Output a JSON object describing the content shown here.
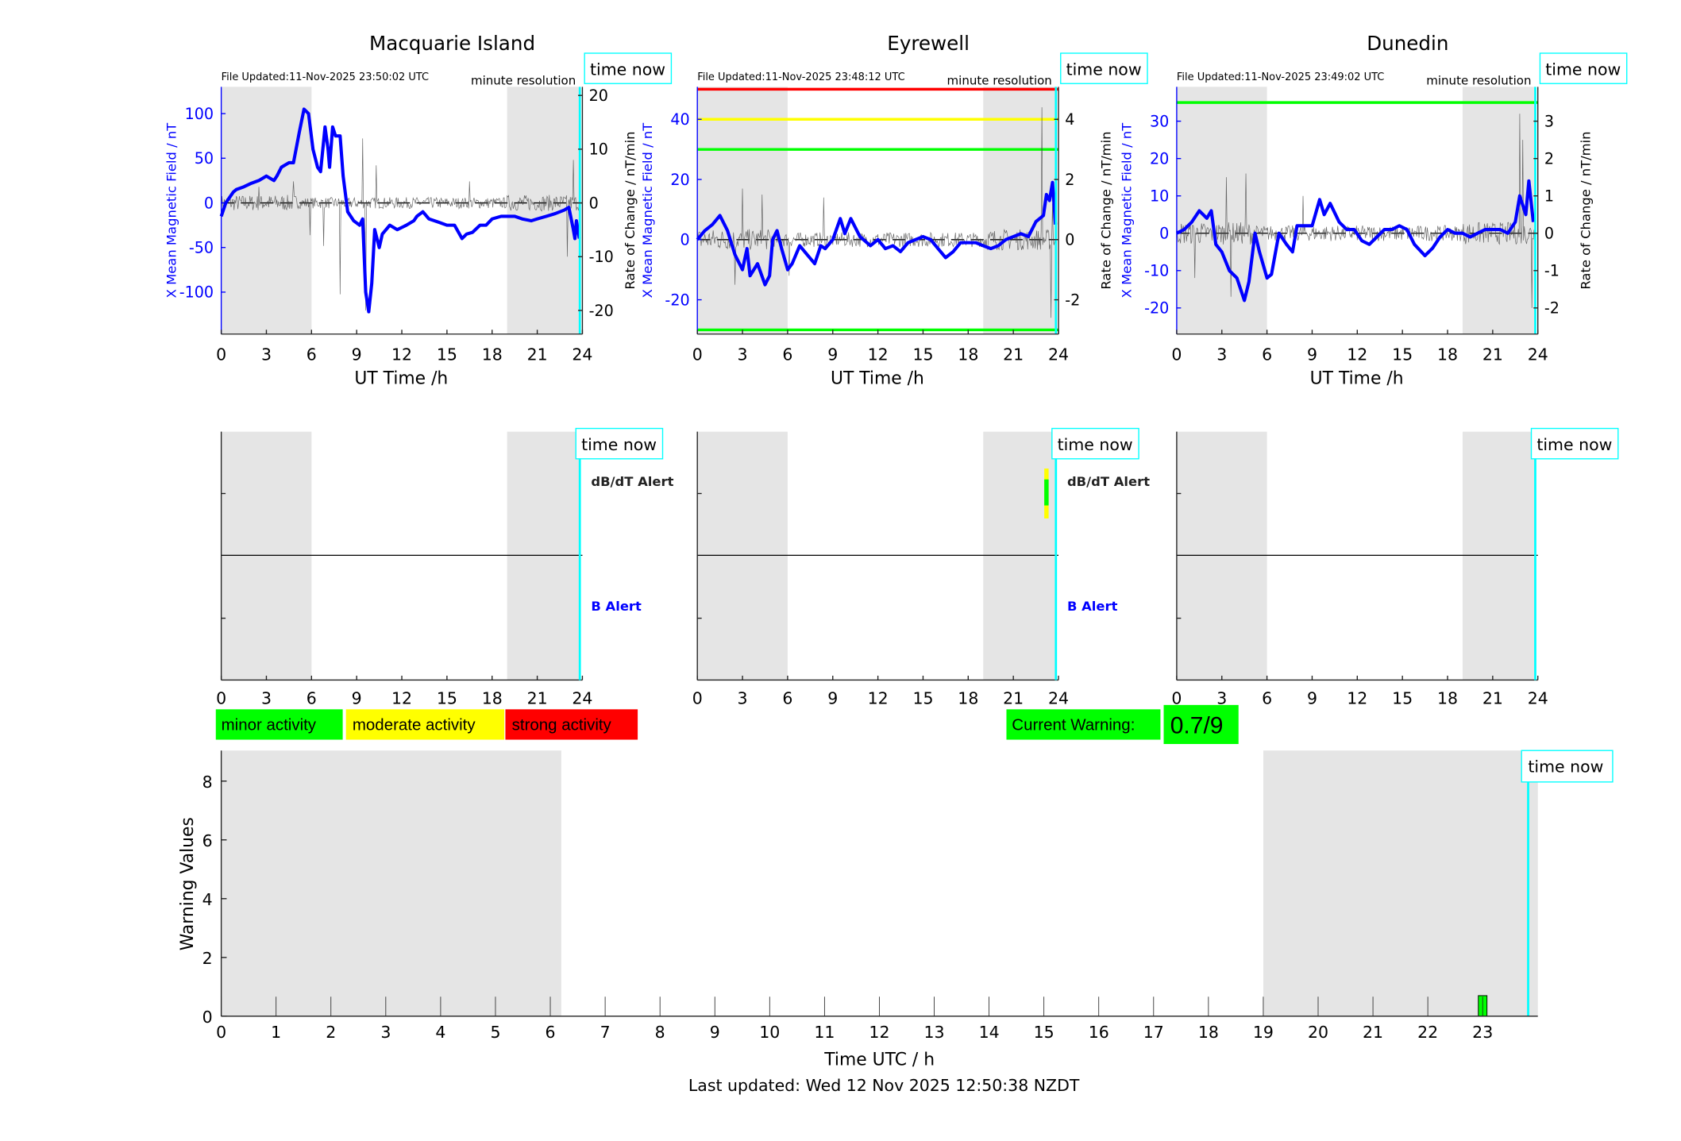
{
  "colors": {
    "blue": "#0000ff",
    "night": "#e5e5e5",
    "cyan": "#00ffff",
    "green": "#00ff00",
    "yellow": "#ffff00",
    "red": "#ff0000",
    "gray": "#555555"
  },
  "common": {
    "xlabel": "UT Time /h",
    "xticks": [
      0,
      3,
      6,
      9,
      12,
      15,
      18,
      21,
      24
    ],
    "left_label": "X Mean Magnetic Field / nT",
    "right_label": "Rate of Change / nT/min",
    "resolution": "minute resolution",
    "time_now": "time now",
    "time_now_hour": 23.83,
    "night": [
      [
        0,
        6
      ],
      [
        19,
        23.83
      ]
    ],
    "dbdt_alert": "dB/dT Alert",
    "b_alert": "B Alert"
  },
  "chart_data": [
    {
      "type": "line",
      "title": "Macquarie Island",
      "file_updated": "File Updated:11-Nov-2025 23:50:02 UTC",
      "ylim": [
        -147,
        130
      ],
      "yticks": [
        -100,
        -50,
        0,
        50,
        100
      ],
      "y2lim": [
        -24.4,
        21.6
      ],
      "y2ticks": [
        -20,
        -10,
        0,
        10,
        20
      ],
      "thresholds": [],
      "show_right_label": true,
      "x_field": [
        [
          0,
          -15
        ],
        [
          0.3,
          0
        ],
        [
          0.8,
          12
        ],
        [
          1,
          15
        ],
        [
          1.5,
          18
        ],
        [
          2,
          22
        ],
        [
          2.5,
          25
        ],
        [
          3,
          30
        ],
        [
          3.5,
          25
        ],
        [
          3.7,
          30
        ],
        [
          4,
          40
        ],
        [
          4.5,
          45
        ],
        [
          4.8,
          45
        ],
        [
          5.2,
          80
        ],
        [
          5.5,
          105
        ],
        [
          5.8,
          100
        ],
        [
          6.1,
          60
        ],
        [
          6.4,
          40
        ],
        [
          6.6,
          35
        ],
        [
          6.9,
          85
        ],
        [
          7.1,
          60
        ],
        [
          7.2,
          40
        ],
        [
          7.4,
          85
        ],
        [
          7.6,
          75
        ],
        [
          7.9,
          75
        ],
        [
          8.1,
          30
        ],
        [
          8.4,
          -10
        ],
        [
          8.8,
          -20
        ],
        [
          9.2,
          -25
        ],
        [
          9.4,
          -18
        ],
        [
          9.6,
          -100
        ],
        [
          9.8,
          -122
        ],
        [
          10,
          -90
        ],
        [
          10.2,
          -30
        ],
        [
          10.5,
          -50
        ],
        [
          10.7,
          -35
        ],
        [
          11.2,
          -25
        ],
        [
          11.7,
          -30
        ],
        [
          12.3,
          -25
        ],
        [
          12.8,
          -20
        ],
        [
          13,
          -15
        ],
        [
          13.4,
          -10
        ],
        [
          13.8,
          -18
        ],
        [
          14.5,
          -22
        ],
        [
          15,
          -25
        ],
        [
          15.5,
          -25
        ],
        [
          16,
          -40
        ],
        [
          16.3,
          -35
        ],
        [
          16.7,
          -33
        ],
        [
          17.2,
          -25
        ],
        [
          17.6,
          -25
        ],
        [
          18,
          -18
        ],
        [
          18.6,
          -15
        ],
        [
          19.5,
          -15
        ],
        [
          20,
          -18
        ],
        [
          20.6,
          -20
        ],
        [
          21,
          -18
        ],
        [
          21.6,
          -15
        ],
        [
          22.2,
          -12
        ],
        [
          22.8,
          -8
        ],
        [
          23.1,
          -5
        ],
        [
          23.4,
          -30
        ],
        [
          23.5,
          -40
        ],
        [
          23.6,
          -20
        ],
        [
          23.8,
          -40
        ]
      ],
      "rate_spikes": [
        [
          2.5,
          3
        ],
        [
          4.8,
          4
        ],
        [
          5.9,
          -6
        ],
        [
          6.8,
          -8
        ],
        [
          7.9,
          -17
        ],
        [
          9.4,
          12
        ],
        [
          9.6,
          -20
        ],
        [
          10.3,
          7
        ],
        [
          16.5,
          4
        ],
        [
          23.0,
          -10
        ],
        [
          23.4,
          8
        ]
      ],
      "rate_noise": 1.5,
      "alerts": []
    },
    {
      "type": "line",
      "title": "Eyrewell",
      "file_updated": "File Updated:11-Nov-2025 23:48:12 UTC",
      "ylim": [
        -31.4,
        50.8
      ],
      "yticks": [
        -20,
        0,
        20,
        40
      ],
      "y2lim": [
        -3.14,
        5.08
      ],
      "y2ticks": [
        -2,
        0,
        2,
        4
      ],
      "thresholds": [
        {
          "value": 50,
          "color": "#ff0000"
        },
        {
          "value": 40,
          "color": "#ffff00"
        },
        {
          "value": 30,
          "color": "#00ff00"
        },
        {
          "value": -30,
          "color": "#00ff00"
        }
      ],
      "show_right_label": true,
      "x_field": [
        [
          0,
          0
        ],
        [
          0.5,
          3
        ],
        [
          1,
          5
        ],
        [
          1.5,
          8
        ],
        [
          2,
          3
        ],
        [
          2.5,
          -5
        ],
        [
          3,
          -10
        ],
        [
          3.3,
          -3
        ],
        [
          3.5,
          -12
        ],
        [
          4,
          -8
        ],
        [
          4.5,
          -15
        ],
        [
          4.8,
          -12
        ],
        [
          5,
          0
        ],
        [
          5.3,
          3
        ],
        [
          5.6,
          -3
        ],
        [
          6,
          -10
        ],
        [
          6.3,
          -8
        ],
        [
          6.8,
          -2
        ],
        [
          7.3,
          -5
        ],
        [
          7.8,
          -8
        ],
        [
          8.2,
          -2
        ],
        [
          8.5,
          -3
        ],
        [
          9,
          0
        ],
        [
          9.5,
          7
        ],
        [
          9.8,
          2
        ],
        [
          10.2,
          7
        ],
        [
          10.8,
          1
        ],
        [
          11.5,
          -2
        ],
        [
          12,
          0
        ],
        [
          12.5,
          -3
        ],
        [
          13,
          -2
        ],
        [
          13.5,
          -4
        ],
        [
          14,
          -1
        ],
        [
          14.5,
          0
        ],
        [
          15,
          1
        ],
        [
          15.5,
          0
        ],
        [
          16,
          -3
        ],
        [
          16.5,
          -6
        ],
        [
          17,
          -4
        ],
        [
          17.5,
          -1
        ],
        [
          18,
          -1
        ],
        [
          18.5,
          -1
        ],
        [
          19,
          -2
        ],
        [
          19.5,
          -3
        ],
        [
          20,
          -2
        ],
        [
          20.5,
          0
        ],
        [
          21,
          1
        ],
        [
          21.5,
          2
        ],
        [
          22,
          1
        ],
        [
          22.5,
          6
        ],
        [
          23,
          8
        ],
        [
          23.2,
          15
        ],
        [
          23.4,
          13
        ],
        [
          23.6,
          19
        ],
        [
          23.8,
          5
        ]
      ],
      "rate_spikes": [
        [
          2.5,
          -1.5
        ],
        [
          3,
          1.7
        ],
        [
          4.3,
          1.5
        ],
        [
          6.1,
          -1.2
        ],
        [
          8.4,
          1.4
        ],
        [
          22.9,
          4.4
        ],
        [
          23.5,
          -2.6
        ],
        [
          23.6,
          1.2
        ]
      ],
      "rate_noise": 0.35,
      "alerts": [
        {
          "hour": 23.2,
          "level": "dbdt"
        }
      ]
    },
    {
      "type": "line",
      "title": "Dunedin",
      "file_updated": "File Updated:11-Nov-2025 23:49:02 UTC",
      "ylim": [
        -27,
        39.2
      ],
      "yticks": [
        -20,
        -10,
        0,
        10,
        20,
        30
      ],
      "y2lim": [
        -2.7,
        3.92
      ],
      "y2ticks": [
        -2,
        -1,
        0,
        1,
        2,
        3
      ],
      "thresholds": [
        {
          "value": 35,
          "color": "#00ff00"
        }
      ],
      "show_right_label": true,
      "x_field": [
        [
          0,
          0
        ],
        [
          0.5,
          1
        ],
        [
          1,
          3
        ],
        [
          1.5,
          6
        ],
        [
          2,
          4
        ],
        [
          2.3,
          6
        ],
        [
          2.6,
          -3
        ],
        [
          3,
          -5
        ],
        [
          3.5,
          -10
        ],
        [
          4,
          -12
        ],
        [
          4.5,
          -18
        ],
        [
          4.8,
          -13
        ],
        [
          5.2,
          0
        ],
        [
          5.5,
          -5
        ],
        [
          6,
          -12
        ],
        [
          6.3,
          -11
        ],
        [
          6.8,
          0
        ],
        [
          7.3,
          -3
        ],
        [
          7.7,
          -5
        ],
        [
          8,
          2
        ],
        [
          8.5,
          2
        ],
        [
          9,
          2
        ],
        [
          9.5,
          9
        ],
        [
          9.8,
          5
        ],
        [
          10.2,
          8
        ],
        [
          10.8,
          3
        ],
        [
          11.3,
          1
        ],
        [
          11.8,
          1
        ],
        [
          12.3,
          -2
        ],
        [
          12.8,
          -3
        ],
        [
          13.3,
          -1
        ],
        [
          13.8,
          1
        ],
        [
          14.3,
          1
        ],
        [
          14.8,
          2
        ],
        [
          15.3,
          1
        ],
        [
          15.8,
          -3
        ],
        [
          16.5,
          -6
        ],
        [
          17,
          -4
        ],
        [
          17.5,
          -1
        ],
        [
          18,
          1
        ],
        [
          18.5,
          0
        ],
        [
          19,
          0
        ],
        [
          19.5,
          -1
        ],
        [
          20,
          0
        ],
        [
          20.5,
          1
        ],
        [
          21,
          1
        ],
        [
          21.5,
          1
        ],
        [
          22,
          0
        ],
        [
          22.5,
          3
        ],
        [
          22.8,
          10
        ],
        [
          23.2,
          5
        ],
        [
          23.4,
          14
        ],
        [
          23.7,
          3
        ]
      ],
      "rate_spikes": [
        [
          1.2,
          -1.2
        ],
        [
          3.3,
          1.5
        ],
        [
          3.6,
          -1.7
        ],
        [
          4.6,
          1.6
        ],
        [
          8.4,
          1.0
        ],
        [
          22.8,
          3.2
        ],
        [
          23.0,
          2.5
        ],
        [
          23.6,
          -2.0
        ]
      ],
      "rate_noise": 0.3,
      "alerts": []
    },
    {
      "type": "bar",
      "title": "",
      "xlabel": "Time UTC / h",
      "ylabel": "Warning Values",
      "xlim": [
        0,
        24
      ],
      "ylim": [
        0,
        9.04
      ],
      "xticks": [
        0,
        1,
        2,
        3,
        4,
        5,
        6,
        7,
        8,
        9,
        10,
        11,
        12,
        13,
        14,
        15,
        16,
        17,
        18,
        19,
        20,
        21,
        22,
        23
      ],
      "yticks": [
        0,
        2,
        4,
        6,
        8
      ],
      "bars": [
        {
          "hour": 23,
          "value": 0.7,
          "color": "#00ff00"
        }
      ]
    }
  ],
  "legend": {
    "items": [
      {
        "label": "minor activity",
        "color": "#00ff00"
      },
      {
        "label": "moderate activity",
        "color": "#ffff00"
      },
      {
        "label": "strong activity",
        "color": "#ff0000"
      }
    ],
    "current_warning_label": "Current Warning:",
    "current_warning_value": "0.7/9"
  },
  "footer": "Last updated: Wed 12 Nov 2025 12:50:38 NZDT"
}
